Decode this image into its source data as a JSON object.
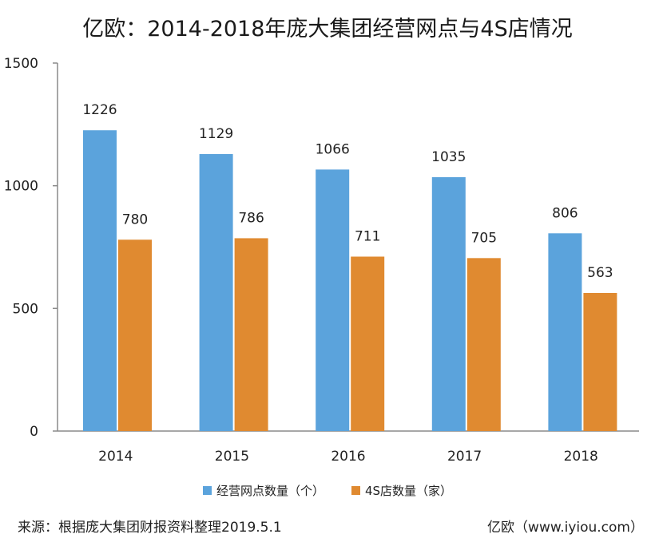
{
  "title": "亿欧：2014-2018年庞大集团经营网点与4S店情况",
  "source": "来源：根据庞大集团财报资料整理2019.5.1",
  "brand": "亿欧（www.iyiou.com）",
  "colors": {
    "series1": "#5ba3dc",
    "series2": "#e08a30",
    "axis": "#8a8a8a"
  },
  "chart_data": {
    "type": "bar",
    "categories": [
      "2014",
      "2015",
      "2016",
      "2017",
      "2018"
    ],
    "series": [
      {
        "name": "经营网点数量（个）",
        "values": [
          1226,
          1129,
          1066,
          1035,
          806
        ]
      },
      {
        "name": "4S店数量（家）",
        "values": [
          780,
          786,
          711,
          705,
          563
        ]
      }
    ],
    "ylim": [
      0,
      1500
    ],
    "yticks": [
      0,
      500,
      1000,
      1500
    ],
    "legend": "bottom",
    "grid": false
  }
}
